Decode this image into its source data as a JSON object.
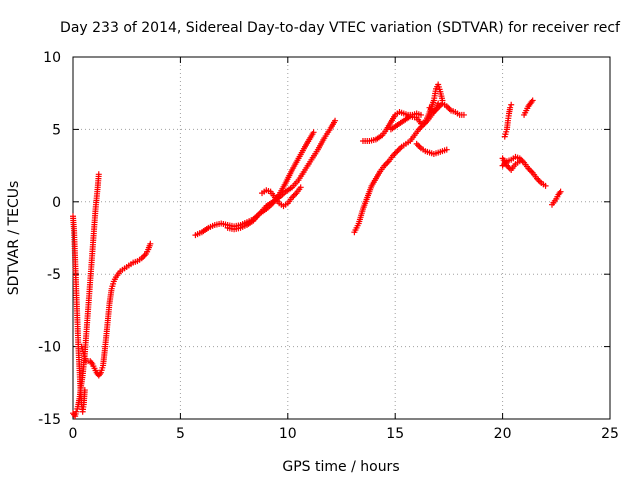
{
  "chart_data": {
    "type": "scatter",
    "title": "Day 233 of 2014, Sidereal Day-to-day VTEC variation (SDTVAR) for receiver recf",
    "xlabel": "GPS time / hours",
    "ylabel": "SDTVAR / TECUs",
    "xlim": [
      0,
      25
    ],
    "ylim": [
      -15,
      10
    ],
    "xticks": [
      "0",
      "5",
      "10",
      "15",
      "20",
      "25"
    ],
    "yticks": [
      "-15",
      "-10",
      "-5",
      "0",
      "5",
      "10"
    ],
    "grid": true,
    "marker": "plus",
    "series": [
      {
        "name": "SDTVAR",
        "color": "#ff0000",
        "segments": [
          [
            [
              0.0,
              -1.0
            ],
            [
              0.05,
              -2.0
            ],
            [
              0.1,
              -4.0
            ],
            [
              0.15,
              -6.0
            ],
            [
              0.2,
              -8.0
            ],
            [
              0.25,
              -10.0
            ],
            [
              0.3,
              -11.5
            ],
            [
              0.35,
              -13.0
            ],
            [
              0.4,
              -14.0
            ],
            [
              0.45,
              -14.5
            ],
            [
              0.5,
              -14.0
            ],
            [
              0.55,
              -13.0
            ]
          ],
          [
            [
              0.0,
              -14.6
            ],
            [
              0.05,
              -14.7
            ],
            [
              0.1,
              -14.8
            ],
            [
              0.15,
              -14.5
            ],
            [
              0.2,
              -14.3
            ],
            [
              0.25,
              -14.0
            ],
            [
              0.3,
              -13.6
            ],
            [
              0.35,
              -13.0
            ]
          ],
          [
            [
              0.35,
              -13.0
            ],
            [
              0.45,
              -12.0
            ],
            [
              0.55,
              -10.5
            ],
            [
              0.65,
              -8.5
            ],
            [
              0.75,
              -6.5
            ],
            [
              0.85,
              -4.5
            ],
            [
              0.95,
              -2.5
            ],
            [
              1.05,
              -0.5
            ],
            [
              1.15,
              1.0
            ],
            [
              1.2,
              1.9
            ]
          ],
          [
            [
              0.4,
              -10.0
            ],
            [
              0.5,
              -10.5
            ],
            [
              0.6,
              -11.0
            ],
            [
              0.7,
              -11.0
            ],
            [
              0.8,
              -11.0
            ],
            [
              0.9,
              -11.2
            ],
            [
              1.0,
              -11.5
            ],
            [
              1.1,
              -11.8
            ],
            [
              1.2,
              -12.0
            ],
            [
              1.3,
              -11.8
            ],
            [
              1.4,
              -11.3
            ],
            [
              1.5,
              -10.0
            ],
            [
              1.6,
              -8.5
            ],
            [
              1.7,
              -7.0
            ],
            [
              1.8,
              -6.0
            ],
            [
              1.9,
              -5.5
            ],
            [
              2.0,
              -5.2
            ],
            [
              2.2,
              -4.8
            ],
            [
              2.4,
              -4.6
            ],
            [
              2.6,
              -4.4
            ],
            [
              2.8,
              -4.2
            ],
            [
              3.0,
              -4.1
            ],
            [
              3.2,
              -3.9
            ],
            [
              3.4,
              -3.6
            ],
            [
              3.5,
              -3.3
            ],
            [
              3.6,
              -2.9
            ]
          ],
          [
            [
              5.7,
              -2.3
            ],
            [
              6.0,
              -2.1
            ],
            [
              6.3,
              -1.8
            ],
            [
              6.6,
              -1.6
            ],
            [
              6.9,
              -1.5
            ],
            [
              7.2,
              -1.6
            ],
            [
              7.5,
              -1.7
            ],
            [
              7.8,
              -1.6
            ],
            [
              8.1,
              -1.4
            ],
            [
              8.4,
              -1.2
            ],
            [
              8.7,
              -0.8
            ],
            [
              9.0,
              -0.5
            ],
            [
              9.3,
              -0.1
            ],
            [
              9.6,
              0.5
            ],
            [
              9.9,
              1.3
            ],
            [
              10.2,
              2.2
            ],
            [
              10.5,
              3.0
            ],
            [
              10.8,
              3.8
            ],
            [
              11.0,
              4.3
            ],
            [
              11.2,
              4.8
            ]
          ],
          [
            [
              7.2,
              -1.8
            ],
            [
              7.5,
              -1.9
            ],
            [
              7.8,
              -1.8
            ],
            [
              8.1,
              -1.6
            ],
            [
              8.4,
              -1.3
            ],
            [
              8.7,
              -0.8
            ],
            [
              9.0,
              -0.3
            ],
            [
              9.3,
              0.0
            ],
            [
              9.6,
              0.3
            ],
            [
              9.9,
              0.7
            ],
            [
              10.2,
              1.0
            ],
            [
              10.5,
              1.5
            ],
            [
              10.8,
              2.2
            ],
            [
              11.1,
              2.9
            ],
            [
              11.4,
              3.6
            ],
            [
              11.7,
              4.4
            ],
            [
              12.0,
              5.1
            ],
            [
              12.2,
              5.6
            ]
          ],
          [
            [
              8.8,
              0.6
            ],
            [
              9.0,
              0.8
            ],
            [
              9.2,
              0.7
            ],
            [
              9.4,
              0.3
            ],
            [
              9.6,
              -0.1
            ],
            [
              9.8,
              -0.3
            ],
            [
              10.0,
              -0.1
            ],
            [
              10.2,
              0.3
            ],
            [
              10.4,
              0.6
            ],
            [
              10.6,
              1.0
            ]
          ],
          [
            [
              13.1,
              -2.1
            ],
            [
              13.3,
              -1.5
            ],
            [
              13.5,
              -0.5
            ],
            [
              13.7,
              0.3
            ],
            [
              13.9,
              1.1
            ],
            [
              14.1,
              1.6
            ],
            [
              14.3,
              2.1
            ],
            [
              14.5,
              2.5
            ],
            [
              14.7,
              2.8
            ],
            [
              14.9,
              3.2
            ],
            [
              15.1,
              3.5
            ],
            [
              15.3,
              3.8
            ],
            [
              15.5,
              4.0
            ],
            [
              15.7,
              4.2
            ],
            [
              15.9,
              4.6
            ],
            [
              16.1,
              5.0
            ],
            [
              16.3,
              5.3
            ],
            [
              16.5,
              5.6
            ],
            [
              16.7,
              6.0
            ],
            [
              16.9,
              6.4
            ],
            [
              17.0,
              6.8
            ]
          ],
          [
            [
              13.5,
              4.2
            ],
            [
              13.8,
              4.2
            ],
            [
              14.1,
              4.3
            ],
            [
              14.4,
              4.6
            ],
            [
              14.6,
              5.0
            ],
            [
              14.8,
              5.5
            ],
            [
              15.0,
              6.0
            ],
            [
              15.2,
              6.2
            ],
            [
              15.4,
              6.1
            ],
            [
              15.6,
              6.0
            ],
            [
              15.8,
              6.0
            ],
            [
              16.0,
              6.1
            ],
            [
              16.2,
              6.0
            ]
          ],
          [
            [
              14.8,
              5.0
            ],
            [
              15.1,
              5.3
            ],
            [
              15.4,
              5.6
            ],
            [
              15.7,
              5.9
            ],
            [
              16.0,
              5.8
            ],
            [
              16.2,
              5.4
            ],
            [
              16.4,
              5.5
            ],
            [
              16.6,
              6.2
            ],
            [
              16.8,
              7.0
            ],
            [
              16.9,
              7.8
            ],
            [
              17.0,
              8.1
            ],
            [
              17.1,
              7.6
            ],
            [
              17.2,
              7.0
            ]
          ],
          [
            [
              16.6,
              6.5
            ],
            [
              16.8,
              6.2
            ],
            [
              17.0,
              6.5
            ],
            [
              17.2,
              6.8
            ],
            [
              17.4,
              6.6
            ],
            [
              17.6,
              6.3
            ],
            [
              17.8,
              6.2
            ],
            [
              18.0,
              6.0
            ],
            [
              18.2,
              6.0
            ]
          ],
          [
            [
              16.0,
              4.0
            ],
            [
              16.2,
              3.7
            ],
            [
              16.4,
              3.5
            ],
            [
              16.6,
              3.4
            ],
            [
              16.8,
              3.3
            ],
            [
              17.0,
              3.4
            ],
            [
              17.2,
              3.5
            ],
            [
              17.4,
              3.6
            ]
          ],
          [
            [
              20.1,
              4.5
            ],
            [
              20.2,
              5.0
            ],
            [
              20.25,
              5.6
            ],
            [
              20.3,
              6.1
            ],
            [
              20.35,
              6.5
            ],
            [
              20.4,
              6.7
            ]
          ],
          [
            [
              21.0,
              6.0
            ],
            [
              21.1,
              6.3
            ],
            [
              21.2,
              6.6
            ],
            [
              21.3,
              6.8
            ],
            [
              21.4,
              7.0
            ]
          ],
          [
            [
              20.0,
              2.5
            ],
            [
              20.2,
              2.8
            ],
            [
              20.4,
              2.9
            ],
            [
              20.6,
              3.1
            ],
            [
              20.8,
              3.0
            ],
            [
              21.0,
              2.7
            ],
            [
              21.2,
              2.3
            ],
            [
              21.4,
              2.0
            ],
            [
              21.6,
              1.6
            ],
            [
              21.8,
              1.3
            ],
            [
              22.0,
              1.1
            ]
          ],
          [
            [
              20.0,
              3.0
            ],
            [
              20.2,
              2.5
            ],
            [
              20.4,
              2.2
            ],
            [
              20.6,
              2.6
            ],
            [
              20.8,
              2.8
            ]
          ],
          [
            [
              22.3,
              -0.2
            ],
            [
              22.5,
              0.2
            ],
            [
              22.6,
              0.5
            ],
            [
              22.7,
              0.7
            ]
          ]
        ]
      }
    ]
  }
}
